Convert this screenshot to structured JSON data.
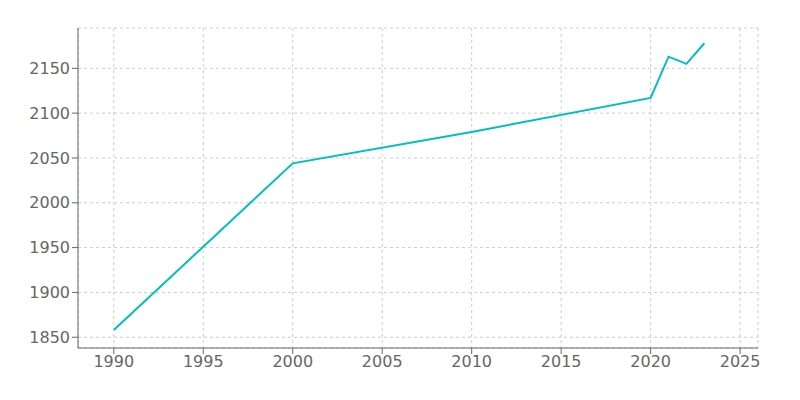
{
  "chart_data": {
    "type": "line",
    "x": [
      1990,
      2000,
      2010,
      2020,
      2021,
      2022,
      2023
    ],
    "values": [
      1858,
      2044,
      2079,
      2117,
      2163,
      2155,
      2178
    ],
    "color": "#00BFBF",
    "xlim": [
      1988,
      2026
    ],
    "xticks": [
      1990,
      1995,
      2000,
      2005,
      2010,
      2015,
      2020,
      2025
    ],
    "ylim": [
      1838,
      2195
    ],
    "yticks": [
      1850,
      1900,
      1950,
      2000,
      2050,
      2100,
      2150
    ],
    "grid": true
  }
}
